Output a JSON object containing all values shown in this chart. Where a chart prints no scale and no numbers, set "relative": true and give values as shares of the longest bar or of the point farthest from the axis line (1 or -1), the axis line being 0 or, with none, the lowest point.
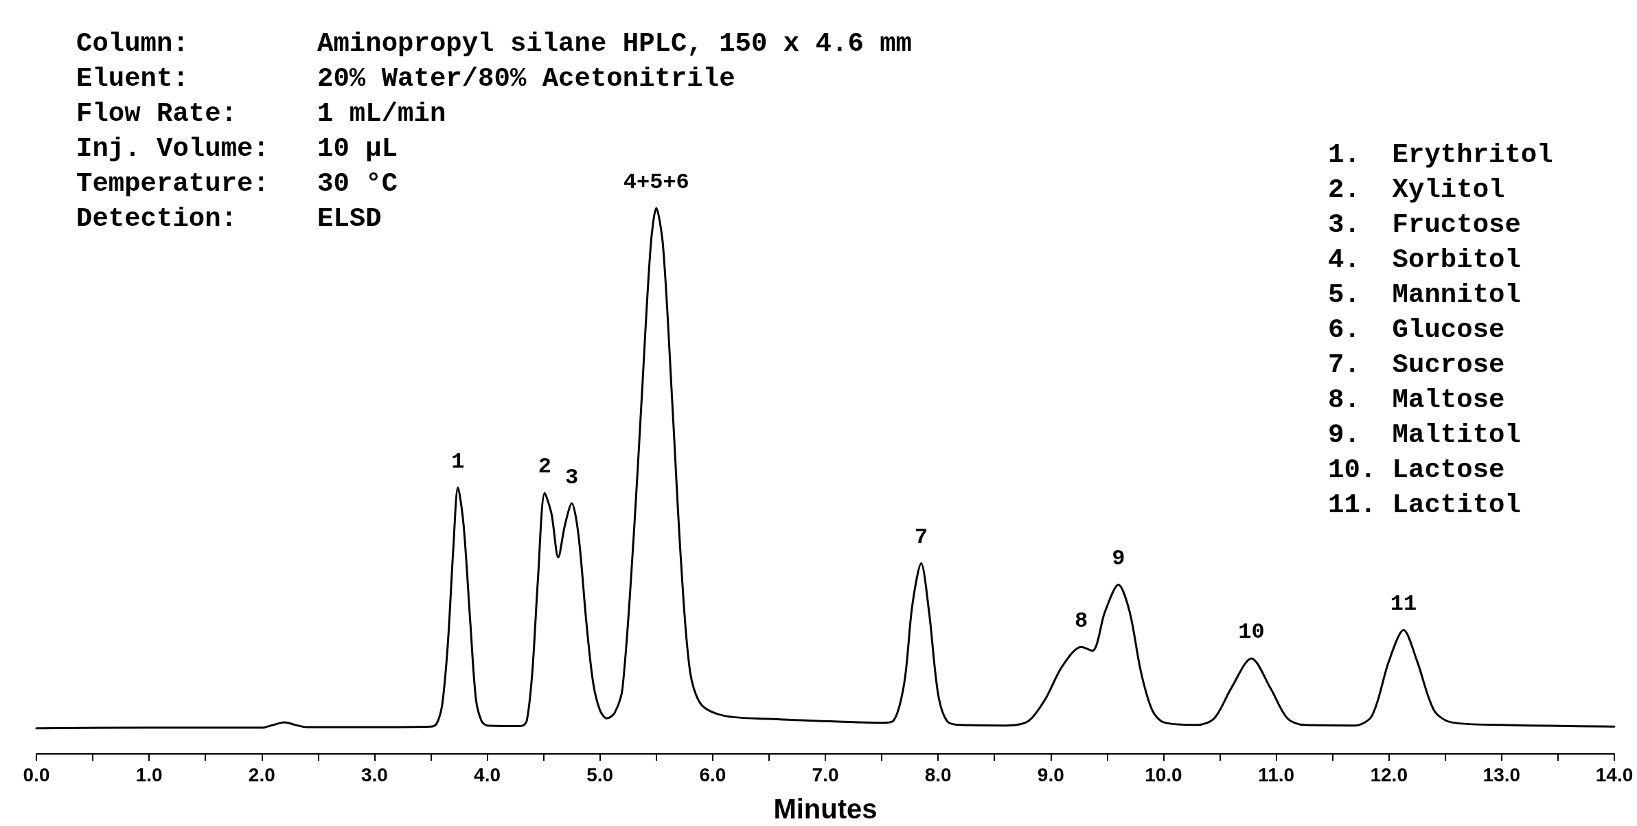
{
  "chart_data": {
    "type": "line",
    "relative": true,
    "xlabel": "Minutes",
    "annotations": [
      "Column:        Aminopropyl silane HPLC, 150 x 4.6 mm\nEluent:        20% Water/80% Acetonitrile\nFlow Rate:     1 mL/min\nInj. Volume:   10 µL\nTemperature:   30 °C\nDetection:     ELSD",
      "1.  Erythritol\n2.  Xylitol\n3.  Fructose\n4.  Sorbitol\n5.  Mannitol\n6.  Glucose\n7.  Sucrose\n8.  Maltose\n9.  Maltitol\n10. Lactose\n11. Lactitol",
      {
        "text": "1",
        "x": 3.74,
        "y": 0.488
      },
      {
        "text": "2",
        "x": 4.51,
        "y": 0.478
      },
      {
        "text": "3",
        "x": 4.75,
        "y": 0.459
      },
      {
        "text": "4+5+6",
        "x": 5.5,
        "y": 1.0
      },
      {
        "text": "7",
        "x": 7.85,
        "y": 0.349
      },
      {
        "text": "8",
        "x": 9.27,
        "y": 0.196
      },
      {
        "text": "9",
        "x": 9.6,
        "y": 0.31
      },
      {
        "text": "10",
        "x": 10.78,
        "y": 0.175
      },
      {
        "text": "11",
        "x": 12.13,
        "y": 0.227
      }
    ],
    "x": [
      0,
      1.0,
      2.0,
      2.1,
      2.2,
      2.3,
      2.4,
      3.0,
      3.5,
      3.55,
      3.6,
      3.65,
      3.7,
      3.74,
      3.79,
      3.85,
      3.9,
      3.95,
      4.0,
      4.3,
      4.35,
      4.4,
      4.45,
      4.51,
      4.57,
      4.63,
      4.69,
      4.75,
      4.81,
      4.88,
      4.94,
      5.0,
      5.06,
      5.13,
      5.2,
      5.3,
      5.37,
      5.45,
      5.5,
      5.56,
      5.64,
      5.72,
      5.8,
      5.9,
      6.1,
      6.5,
      7.0,
      7.5,
      7.6,
      7.7,
      7.77,
      7.85,
      7.92,
      8.0,
      8.08,
      8.2,
      8.6,
      8.8,
      8.95,
      9.1,
      9.27,
      9.37,
      9.48,
      9.6,
      9.7,
      9.8,
      9.9,
      10.0,
      10.3,
      10.45,
      10.6,
      10.78,
      10.95,
      11.1,
      11.25,
      11.7,
      11.85,
      12.0,
      12.13,
      12.25,
      12.4,
      12.55,
      13.0,
      14.0
    ],
    "values": [
      0.047,
      0.048,
      0.048,
      0.053,
      0.058,
      0.053,
      0.049,
      0.049,
      0.05,
      0.055,
      0.09,
      0.2,
      0.38,
      0.488,
      0.42,
      0.24,
      0.1,
      0.06,
      0.052,
      0.051,
      0.06,
      0.15,
      0.32,
      0.478,
      0.44,
      0.36,
      0.42,
      0.459,
      0.4,
      0.24,
      0.13,
      0.08,
      0.065,
      0.075,
      0.12,
      0.4,
      0.65,
      0.93,
      1.0,
      0.93,
      0.65,
      0.35,
      0.15,
      0.09,
      0.07,
      0.064,
      0.06,
      0.057,
      0.06,
      0.13,
      0.27,
      0.349,
      0.26,
      0.11,
      0.06,
      0.053,
      0.052,
      0.06,
      0.1,
      0.16,
      0.196,
      0.189,
      0.26,
      0.31,
      0.26,
      0.15,
      0.08,
      0.058,
      0.053,
      0.065,
      0.12,
      0.175,
      0.12,
      0.065,
      0.053,
      0.052,
      0.07,
      0.17,
      0.227,
      0.17,
      0.08,
      0.058,
      0.053,
      0.05
    ],
    "color": "#000000",
    "marker": "none",
    "line_style": "solid",
    "grid": false,
    "xlim": [
      0,
      14
    ],
    "xticks": [
      {
        "value": 0,
        "label": "0.0"
      },
      {
        "value": 0.5,
        "label": null
      },
      {
        "value": 1,
        "label": "1.0"
      },
      {
        "value": 1.5,
        "label": null
      },
      {
        "value": 2,
        "label": "2.0"
      },
      {
        "value": 2.5,
        "label": null
      },
      {
        "value": 3,
        "label": "3.0"
      },
      {
        "value": 3.5,
        "label": null
      },
      {
        "value": 4,
        "label": "4.0"
      },
      {
        "value": 4.5,
        "label": null
      },
      {
        "value": 5,
        "label": "5.0"
      },
      {
        "value": 5.5,
        "label": null
      },
      {
        "value": 6,
        "label": "6.0"
      },
      {
        "value": 6.5,
        "label": null
      },
      {
        "value": 7,
        "label": "7.0"
      },
      {
        "value": 7.5,
        "label": null
      },
      {
        "value": 8,
        "label": "8.0"
      },
      {
        "value": 8.5,
        "label": null
      },
      {
        "value": 9,
        "label": "9.0"
      },
      {
        "value": 9.5,
        "label": null
      },
      {
        "value": 10,
        "label": "10.0"
      },
      {
        "value": 10.5,
        "label": null
      },
      {
        "value": 11,
        "label": "11.0"
      },
      {
        "value": 11.5,
        "label": null
      },
      {
        "value": 12,
        "label": "12.0"
      },
      {
        "value": 12.5,
        "label": null
      },
      {
        "value": 13,
        "label": "13.0"
      },
      {
        "value": 13.5,
        "label": null
      },
      {
        "value": 14,
        "label": "14.0"
      }
    ]
  }
}
